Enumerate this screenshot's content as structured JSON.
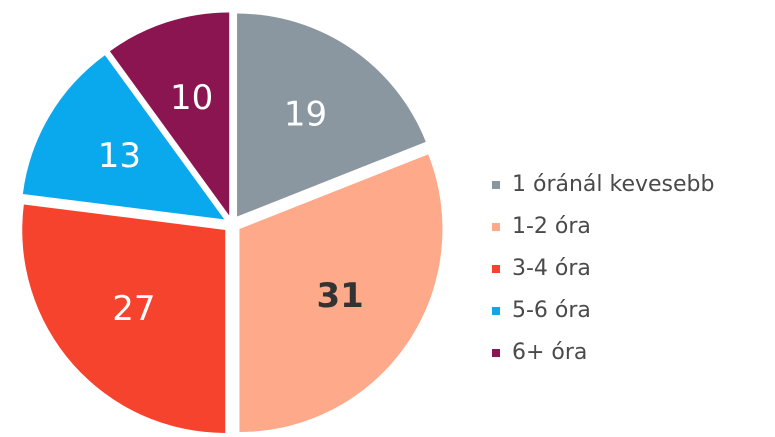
{
  "chart_data": {
    "type": "pie",
    "categories": [
      "1 óránál kevesebb",
      "1-2 óra",
      "3-4 óra",
      "5-6 óra",
      "6+ óra"
    ],
    "values": [
      19,
      31,
      27,
      13,
      10
    ],
    "colors": [
      "#8a97a1",
      "#ffa98b",
      "#f5432e",
      "#0aa8ec",
      "#8b1550"
    ],
    "label_colors": [
      "#ffffff",
      "#333333",
      "#ffffff",
      "#ffffff",
      "#ffffff"
    ],
    "legend": "right"
  }
}
